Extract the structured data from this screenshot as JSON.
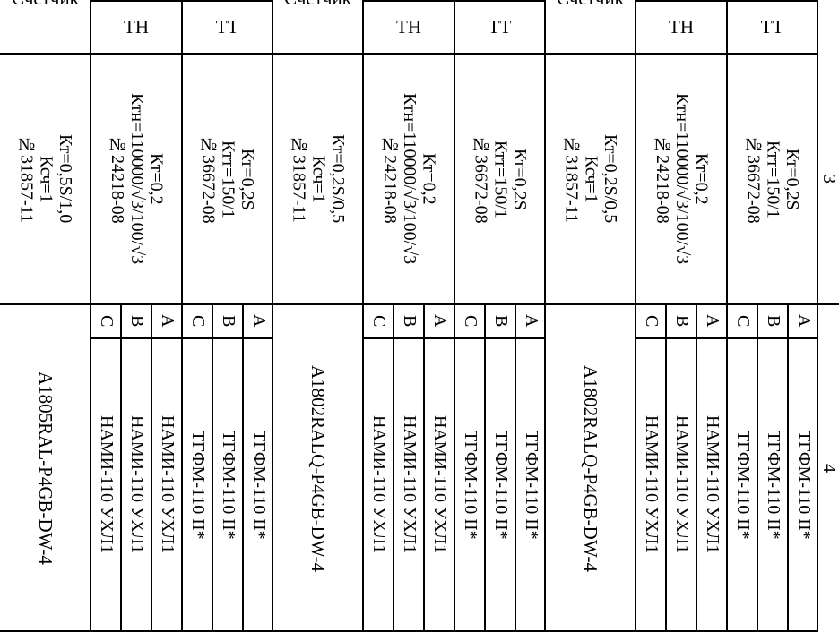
{
  "groups": [
    {
      "meter_header": "Счетчик",
      "vt_header": "ТН",
      "ct_header": "ТТ",
      "meter_info": "Кт=0,5S/1,0\nКсч=1\n№31857-11",
      "vt_info": "Кт=0,2\nКтн=110000/√3/100/√3\n№24218-08",
      "ct_info": "Кт=0,2S\nКтт=150/1\n№36672-08",
      "meter_model": "A1805RAL-P4GB-DW-4",
      "vt_phases": [
        {
          "phase": "C",
          "model": "НАМИ-110 УХЛ1"
        },
        {
          "phase": "B",
          "model": "НАМИ-110 УХЛ1"
        },
        {
          "phase": "A",
          "model": "НАМИ-110 УХЛ1"
        }
      ],
      "ct_phases": [
        {
          "phase": "C",
          "model": "ТГФМ-110 II*"
        },
        {
          "phase": "B",
          "model": "ТГФМ-110 II*"
        },
        {
          "phase": "A",
          "model": "ТГФМ-110 II*"
        }
      ]
    },
    {
      "meter_header": "Счетчик",
      "vt_header": "ТН",
      "ct_header": "ТТ",
      "meter_info": "Кт=0,2S/0,5\nКсч=1\n№31857-11",
      "vt_info": "Кт=0,2\nКтн=110000/√3/100/√3\n№24218-08",
      "ct_info": "Кт=0,2S\nКтт=150/1\n№36672-08",
      "meter_model": "A1802RALQ-P4GB-DW-4",
      "vt_phases": [
        {
          "phase": "C",
          "model": "НАМИ-110 УХЛ1"
        },
        {
          "phase": "B",
          "model": "НАМИ-110 УХЛ1"
        },
        {
          "phase": "A",
          "model": "НАМИ-110 УХЛ1"
        }
      ],
      "ct_phases": [
        {
          "phase": "C",
          "model": "ТГФМ-110 II*"
        },
        {
          "phase": "B",
          "model": "ТГФМ-110 II*"
        },
        {
          "phase": "A",
          "model": "ТГФМ-110 II*"
        }
      ]
    },
    {
      "meter_header": "Счетчик",
      "vt_header": "ТН",
      "ct_header": "ТТ",
      "meter_info": "Кт=0,2S/0,5\nКсч=1\n№31857-11",
      "vt_info": "Кт=0,2\nКтн=110000/√3/100/√3\n№24218-08",
      "ct_info": "Кт=0,2S\nКтт=150/1\n№36672-08",
      "meter_model": "A1802RALQ-P4GB-DW-4",
      "vt_phases": [
        {
          "phase": "C",
          "model": "НАМИ-110 УХЛ1"
        },
        {
          "phase": "B",
          "model": "НАМИ-110 УХЛ1"
        },
        {
          "phase": "A",
          "model": "НАМИ-110 УХЛ1"
        }
      ],
      "ct_phases": [
        {
          "phase": "C",
          "model": "ТГФМ-110 II*"
        },
        {
          "phase": "B",
          "model": "ТГФМ-110 II*"
        },
        {
          "phase": "A",
          "model": "ТГФМ-110 II*"
        }
      ]
    }
  ],
  "side_column": {
    "upper": "3",
    "lower": "4"
  }
}
